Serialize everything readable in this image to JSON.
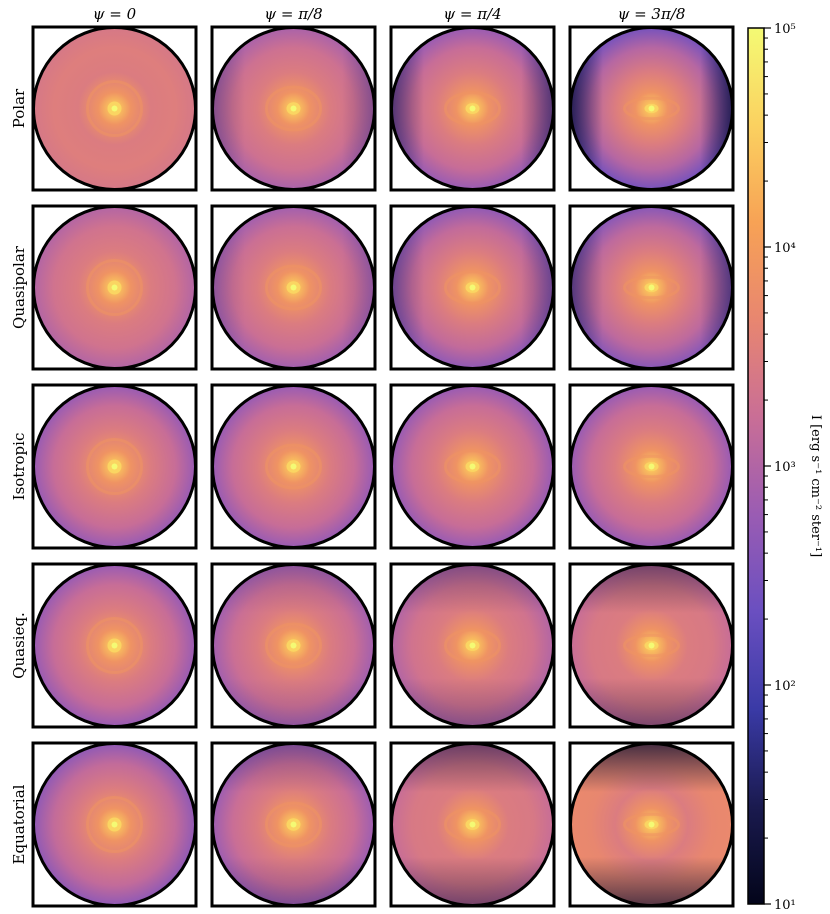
{
  "chart_data": {
    "type": "heatmap",
    "columns": [
      "ψ = 0",
      "ψ = π/8",
      "ψ = π/4",
      "ψ = 3π/8"
    ],
    "rows": [
      "Polar",
      "Quasipolar",
      "Isotropic",
      "Quasieq.",
      "Equatorial"
    ],
    "colorbar": {
      "label": "I [erg s⁻¹ cm⁻² ster⁻¹]",
      "scale": "log",
      "range": [
        10,
        100000
      ],
      "ticks": [
        10,
        100,
        1000,
        10000,
        100000
      ],
      "tick_labels": [
        "10¹",
        "10²",
        "10³",
        "10⁴",
        "10⁵"
      ],
      "colormap": [
        "#03051a",
        "#1a1a4f",
        "#3a3aa6",
        "#6a4fc0",
        "#9a5cb3",
        "#c96e96",
        "#e88670",
        "#f7a255",
        "#fbd160",
        "#f4fa74"
      ]
    },
    "cmap_position": [
      [
        0.6,
        0.48,
        0.44,
        0.36
      ],
      [
        0.5,
        0.46,
        0.42,
        0.4
      ],
      [
        0.44,
        0.44,
        0.44,
        0.44
      ],
      [
        0.44,
        0.46,
        0.5,
        0.55
      ],
      [
        0.42,
        0.45,
        0.55,
        0.68
      ]
    ]
  }
}
